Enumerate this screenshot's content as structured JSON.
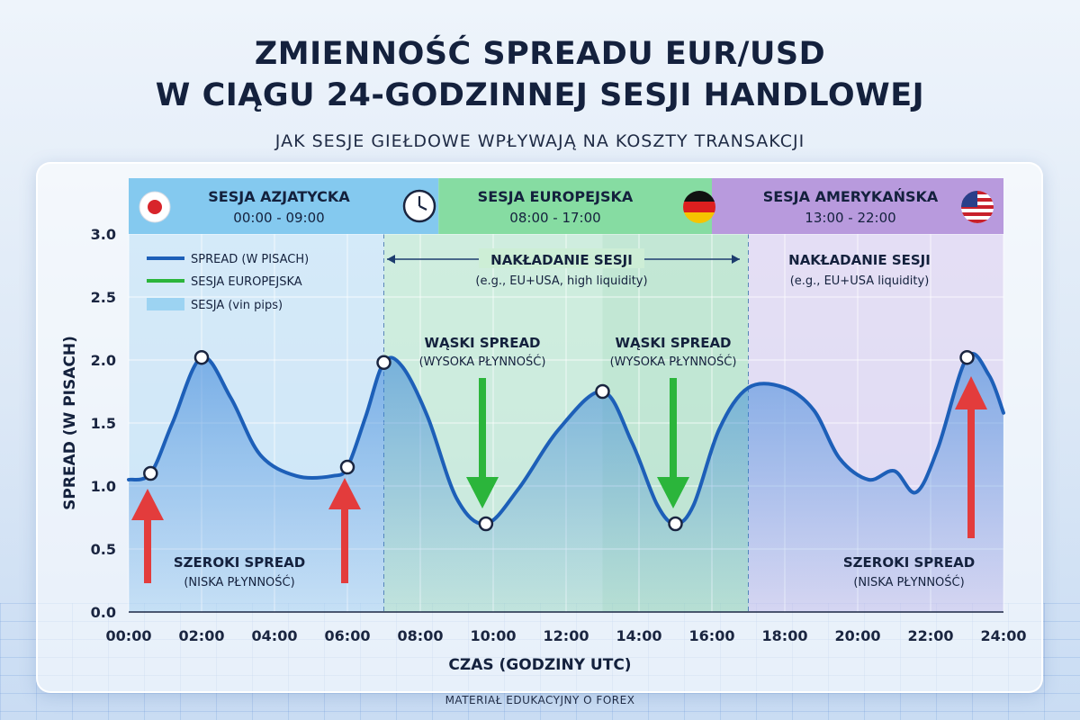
{
  "header": {
    "title_line1": "ZMIENNOŚĆ SPREADU EUR/USD",
    "title_line2": "W CIĄGU 24-GODZINNEJ SESJI HANDLOWEJ",
    "subtitle": "JAK SESJE GIEŁDOWE WPŁYWAJĄ NA KOSZTY TRANSAKCJI"
  },
  "footer": "MATERIAŁ EDUKACYJNY O FOREX",
  "colors": {
    "line": "#1d5fb8",
    "area_top": "#2f7fd8",
    "asia": "#7cc3ee",
    "europe": "#7ed69a",
    "america": "#c3a5e4",
    "arrow_up": "#e33c3c",
    "arrow_down": "#2bb53b"
  },
  "sessions": [
    {
      "id": "asia",
      "name": "SESJA AZJATYCKA",
      "hours": "00:00 - 09:00",
      "start": 0,
      "end": 9,
      "flag": "japan-flag-icon",
      "extra_icon": "clock-icon"
    },
    {
      "id": "europe",
      "name": "SESJA EUROPEJSKA",
      "hours": "08:00 - 17:00",
      "start": 8,
      "end": 17,
      "flag": "germany-flag-icon"
    },
    {
      "id": "america",
      "name": "SESJA AMERYKAŃSKA",
      "hours": "13:00 - 22:00",
      "start": 13,
      "end": 22,
      "flag": "usa-flag-icon"
    }
  ],
  "legend": [
    {
      "label": "SPREAD (W PISACH)",
      "swatch": "line-blue"
    },
    {
      "label": "SESJA EUROPEJSKA",
      "swatch": "line-green"
    },
    {
      "label": "SESJA (vin pips)",
      "swatch": "box-lightblue"
    }
  ],
  "annotations": {
    "overlap1": {
      "title": "NAKŁADANIE SESJI",
      "sub": "(e.g., EU+USA, high liquidity)"
    },
    "overlap2": {
      "title": "NAKŁADANIE SESJI",
      "sub": "(e.g., EU+USA liquidity)"
    },
    "narrow1": {
      "title": "WĄSKI SPREAD",
      "sub": "(WYSOKA PŁYNNOŚĆ)"
    },
    "narrow2": {
      "title": "WĄSKI SPREAD",
      "sub": "(WYSOKA PŁYNNOŚĆ)"
    },
    "wide1": {
      "title": "SZEROKI SPREAD",
      "sub": "(NISKA PŁYNNOŚĆ)"
    },
    "wide2": {
      "title": "SZEROKI SPREAD",
      "sub": "(NISKA PŁYNNOŚĆ)"
    }
  },
  "chart_data": {
    "type": "line",
    "title": "ZMIENNOŚĆ SPREADU EUR/USD W CIĄGU 24-GODZINNEJ SESJI HANDLOWEJ",
    "xlabel": "CZAS (GODZINY UTC)",
    "ylabel": "SPREAD (W PISACH)",
    "xlim": [
      0,
      24
    ],
    "ylim": [
      0,
      3.0
    ],
    "x_ticks": [
      "00:00",
      "02:00",
      "04:00",
      "06:00",
      "08:00",
      "10:00",
      "12:00",
      "14:00",
      "16:00",
      "18:00",
      "20:00",
      "22:00",
      "24:00"
    ],
    "y_ticks": [
      "0.0",
      "0.5",
      "1.0",
      "1.5",
      "2.0",
      "2.5",
      "3.0"
    ],
    "grid": true,
    "legend_position": "top-left",
    "series": [
      {
        "name": "SPREAD (W PISACH)",
        "x": [
          0,
          0.6,
          1.2,
          2.0,
          2.8,
          3.6,
          4.6,
          5.6,
          6.0,
          6.5,
          7.0,
          7.5,
          8.2,
          9.0,
          9.8,
          10.7,
          11.8,
          13.0,
          13.8,
          14.5,
          15.0,
          15.5,
          16.2,
          17.0,
          18.0,
          18.8,
          19.5,
          20.3,
          21.0,
          21.6,
          22.2,
          23.0,
          23.6,
          24.0
        ],
        "y": [
          1.05,
          1.1,
          1.5,
          2.02,
          1.7,
          1.25,
          1.08,
          1.08,
          1.15,
          1.55,
          1.98,
          1.95,
          1.55,
          0.9,
          0.7,
          0.98,
          1.45,
          1.75,
          1.35,
          0.85,
          0.7,
          0.85,
          1.45,
          1.78,
          1.78,
          1.6,
          1.22,
          1.05,
          1.12,
          0.95,
          1.3,
          2.02,
          1.88,
          1.58
        ]
      }
    ],
    "markers": [
      {
        "x": 0.6,
        "y": 1.1
      },
      {
        "x": 2.0,
        "y": 2.02
      },
      {
        "x": 6.0,
        "y": 1.15
      },
      {
        "x": 7.0,
        "y": 1.98
      },
      {
        "x": 9.8,
        "y": 0.7
      },
      {
        "x": 13.0,
        "y": 1.75
      },
      {
        "x": 15.0,
        "y": 0.7
      },
      {
        "x": 23.0,
        "y": 2.02
      }
    ]
  }
}
